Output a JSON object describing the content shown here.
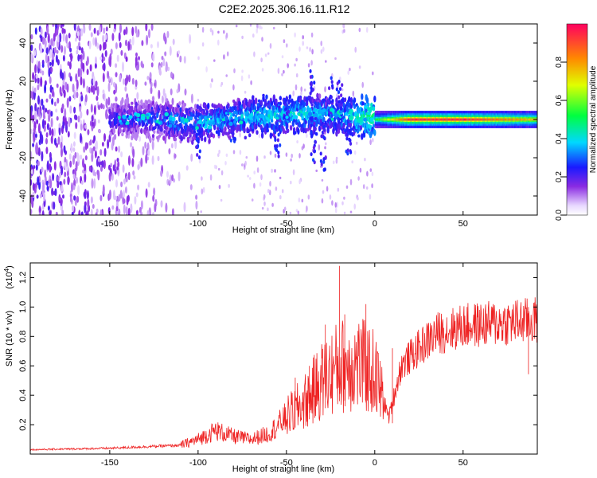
{
  "title": "C2E2.2025.306.16.11.R12",
  "chart_data": [
    {
      "type": "heatmap",
      "xlabel": "Height of straight line (km)",
      "ylabel": "Frequency (Hz)",
      "xlim": [
        -195,
        92
      ],
      "ylim": [
        -50,
        50
      ],
      "xticks": [
        -150,
        -100,
        -50,
        0,
        50
      ],
      "xtick_labels": [
        "-150",
        "-100",
        "-50",
        "0",
        "50"
      ],
      "yticks": [
        -40,
        -20,
        0,
        20,
        40
      ],
      "ytick_labels": [
        "-40",
        "-20",
        "0",
        "20",
        "40"
      ],
      "colorbar": {
        "label": "Normalized spectral amplitude",
        "range": [
          0,
          1
        ],
        "ticks": [
          0.0,
          0.2,
          0.4,
          0.6,
          0.8
        ],
        "tick_labels": [
          "0.0",
          "0.2",
          "0.4",
          "0.6",
          "0.8"
        ]
      },
      "ridge_profile": [
        {
          "x": -150,
          "f": 0,
          "amp": 0.25
        },
        {
          "x": -120,
          "f": 0,
          "amp": 0.3
        },
        {
          "x": -100,
          "f": -2,
          "amp": 0.35
        },
        {
          "x": -80,
          "f": 1,
          "amp": 0.35
        },
        {
          "x": -60,
          "f": 2,
          "amp": 0.4
        },
        {
          "x": -40,
          "f": 3,
          "amp": 0.4
        },
        {
          "x": -20,
          "f": 2,
          "amp": 0.35
        },
        {
          "x": 0,
          "f": 1,
          "amp": 0.5
        },
        {
          "x": 20,
          "f": 0,
          "amp": 0.95
        },
        {
          "x": 50,
          "f": 0,
          "amp": 0.95
        },
        {
          "x": 90,
          "f": 0,
          "amp": 0.75
        }
      ]
    },
    {
      "type": "line",
      "xlabel": "Height of straight line (km)",
      "ylabel": "SNR (10 * v/v)",
      "yscale_label": "(x10",
      "yscale_exp": "4",
      "yscale_close": ")",
      "xlim": [
        -195,
        92
      ],
      "ylim": [
        0,
        1.3
      ],
      "xticks": [
        -150,
        -100,
        -50,
        0,
        50
      ],
      "xtick_labels": [
        "-150",
        "-100",
        "-50",
        "0",
        "50"
      ],
      "yticks": [
        0.2,
        0.4,
        0.6,
        0.8,
        1.0,
        1.2
      ],
      "ytick_labels": [
        "0.2",
        "0.4",
        "0.6",
        "0.8",
        "1.0",
        "1.2"
      ],
      "color": "#ee2222",
      "envelope": [
        {
          "x": -195,
          "y": 0.03
        },
        {
          "x": -150,
          "y": 0.04
        },
        {
          "x": -110,
          "y": 0.06
        },
        {
          "x": -100,
          "y": 0.1
        },
        {
          "x": -90,
          "y": 0.16
        },
        {
          "x": -80,
          "y": 0.12
        },
        {
          "x": -70,
          "y": 0.1
        },
        {
          "x": -60,
          "y": 0.14
        },
        {
          "x": -50,
          "y": 0.25
        },
        {
          "x": -40,
          "y": 0.35
        },
        {
          "x": -30,
          "y": 0.5
        },
        {
          "x": -20,
          "y": 0.6
        },
        {
          "x": -10,
          "y": 0.62
        },
        {
          "x": 0,
          "y": 0.55
        },
        {
          "x": 8,
          "y": 0.25
        },
        {
          "x": 15,
          "y": 0.6
        },
        {
          "x": 25,
          "y": 0.72
        },
        {
          "x": 35,
          "y": 0.82
        },
        {
          "x": 50,
          "y": 0.87
        },
        {
          "x": 70,
          "y": 0.89
        },
        {
          "x": 92,
          "y": 0.91
        }
      ],
      "peaks": [
        {
          "x": -20,
          "y": 1.28
        },
        {
          "x": -17,
          "y": 0.95
        },
        {
          "x": -5,
          "y": 1.02
        },
        {
          "x": -28,
          "y": 0.88
        },
        {
          "x": -37,
          "y": 0.6
        },
        {
          "x": -45,
          "y": 0.52
        },
        {
          "x": 10,
          "y": 0.72
        },
        {
          "x": 87,
          "y": 1.0
        }
      ]
    }
  ]
}
